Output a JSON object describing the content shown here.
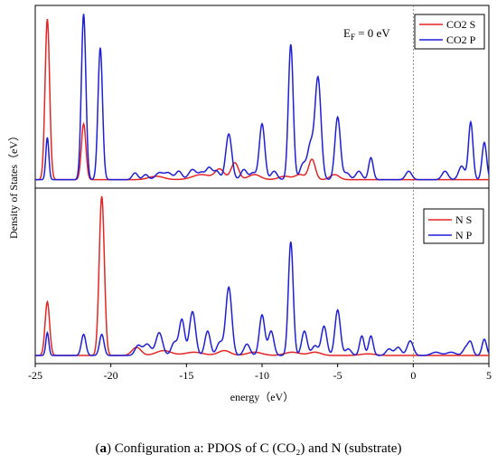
{
  "caption": {
    "letter": "a",
    "text": ") Configuration a: PDOS of C (CO₂) and N (substrate)"
  },
  "chart_data": {
    "type": "line",
    "ylabel": "Density of States（eV）",
    "xlabel": "energy（eV）",
    "xlim": [
      -25,
      5
    ],
    "xticks": [
      "-25",
      "-20",
      "-15",
      "-10",
      "-5",
      "0",
      "5"
    ],
    "fermi_level_x": 0,
    "fermi_annotation": {
      "prefix": "E",
      "subscript": "F",
      "suffix": " = 0 eV"
    },
    "colors": {
      "s": "#e32626",
      "p": "#1f1fd6"
    },
    "panels": [
      {
        "name": "top",
        "baseline": 0.05,
        "ylim": [
          0,
          1.08
        ],
        "series": [
          {
            "name": "CO2 S",
            "color": "#e32626",
            "peaks": [
              {
                "c": -24.2,
                "h": 0.95,
                "w": 0.15
              },
              {
                "c": -21.8,
                "h": 0.33,
                "w": 0.15
              },
              {
                "c": -17.0,
                "h": 0.02,
                "w": 0.5
              },
              {
                "c": -14.0,
                "h": 0.03,
                "w": 0.6
              },
              {
                "c": -12.8,
                "h": 0.06,
                "w": 0.3
              },
              {
                "c": -11.8,
                "h": 0.1,
                "w": 0.25
              },
              {
                "c": -10.5,
                "h": 0.03,
                "w": 0.4
              },
              {
                "c": -8.5,
                "h": 0.02,
                "w": 0.4
              },
              {
                "c": -7.5,
                "h": 0.03,
                "w": 0.3
              },
              {
                "c": -6.7,
                "h": 0.12,
                "w": 0.22
              },
              {
                "c": -5.2,
                "h": 0.03,
                "w": 0.3
              }
            ]
          },
          {
            "name": "CO2 P",
            "color": "#1f1fd6",
            "peaks": [
              {
                "c": -24.2,
                "h": 0.25,
                "w": 0.1
              },
              {
                "c": -21.8,
                "h": 0.98,
                "w": 0.15
              },
              {
                "c": -20.7,
                "h": 0.78,
                "w": 0.15
              },
              {
                "c": -18.4,
                "h": 0.04,
                "w": 0.18
              },
              {
                "c": -17.7,
                "h": 0.03,
                "w": 0.18
              },
              {
                "c": -16.8,
                "h": 0.04,
                "w": 0.25
              },
              {
                "c": -16.2,
                "h": 0.04,
                "w": 0.25
              },
              {
                "c": -15.5,
                "h": 0.05,
                "w": 0.2
              },
              {
                "c": -14.6,
                "h": 0.06,
                "w": 0.25
              },
              {
                "c": -14.0,
                "h": 0.04,
                "w": 0.2
              },
              {
                "c": -13.5,
                "h": 0.07,
                "w": 0.2
              },
              {
                "c": -13.0,
                "h": 0.05,
                "w": 0.2
              },
              {
                "c": -12.2,
                "h": 0.27,
                "w": 0.2
              },
              {
                "c": -11.2,
                "h": 0.06,
                "w": 0.2
              },
              {
                "c": -10.6,
                "h": 0.04,
                "w": 0.2
              },
              {
                "c": -10.0,
                "h": 0.33,
                "w": 0.18
              },
              {
                "c": -9.2,
                "h": 0.05,
                "w": 0.2
              },
              {
                "c": -8.1,
                "h": 0.8,
                "w": 0.16
              },
              {
                "c": -7.3,
                "h": 0.09,
                "w": 0.2
              },
              {
                "c": -6.8,
                "h": 0.2,
                "w": 0.2
              },
              {
                "c": -6.3,
                "h": 0.6,
                "w": 0.2
              },
              {
                "c": -5.0,
                "h": 0.37,
                "w": 0.18
              },
              {
                "c": -4.4,
                "h": 0.04,
                "w": 0.2
              },
              {
                "c": -3.6,
                "h": 0.05,
                "w": 0.2
              },
              {
                "c": -2.8,
                "h": 0.13,
                "w": 0.15
              },
              {
                "c": -0.3,
                "h": 0.05,
                "w": 0.2
              },
              {
                "c": 2.1,
                "h": 0.05,
                "w": 0.2
              },
              {
                "c": 3.2,
                "h": 0.08,
                "w": 0.2
              },
              {
                "c": 3.8,
                "h": 0.34,
                "w": 0.15
              },
              {
                "c": 4.7,
                "h": 0.22,
                "w": 0.15
              }
            ]
          }
        ]
      },
      {
        "name": "bottom",
        "baseline": 0.05,
        "ylim": [
          0,
          1.08
        ],
        "series": [
          {
            "name": "N S",
            "color": "#e32626",
            "peaks": [
              {
                "c": -24.2,
                "h": 0.33,
                "w": 0.15
              },
              {
                "c": -20.6,
                "h": 0.98,
                "w": 0.17
              },
              {
                "c": -18.3,
                "h": 0.05,
                "w": 0.3
              },
              {
                "c": -16.5,
                "h": 0.03,
                "w": 0.5
              },
              {
                "c": -14.5,
                "h": 0.02,
                "w": 0.6
              },
              {
                "c": -12.5,
                "h": 0.03,
                "w": 0.4
              },
              {
                "c": -10.5,
                "h": 0.02,
                "w": 0.5
              },
              {
                "c": -8.0,
                "h": 0.02,
                "w": 0.5
              },
              {
                "c": -6.5,
                "h": 0.02,
                "w": 0.4
              },
              {
                "c": -3.0,
                "h": 0.01,
                "w": 0.5
              }
            ]
          },
          {
            "name": "N P",
            "color": "#1f1fd6",
            "peaks": [
              {
                "c": -24.2,
                "h": 0.14,
                "w": 0.1
              },
              {
                "c": -21.8,
                "h": 0.13,
                "w": 0.15
              },
              {
                "c": -20.6,
                "h": 0.13,
                "w": 0.15
              },
              {
                "c": -18.2,
                "h": 0.06,
                "w": 0.2
              },
              {
                "c": -17.6,
                "h": 0.07,
                "w": 0.25
              },
              {
                "c": -16.8,
                "h": 0.14,
                "w": 0.22
              },
              {
                "c": -15.8,
                "h": 0.08,
                "w": 0.2
              },
              {
                "c": -15.3,
                "h": 0.22,
                "w": 0.18
              },
              {
                "c": -14.6,
                "h": 0.27,
                "w": 0.2
              },
              {
                "c": -13.6,
                "h": 0.15,
                "w": 0.18
              },
              {
                "c": -12.8,
                "h": 0.08,
                "w": 0.2
              },
              {
                "c": -12.2,
                "h": 0.42,
                "w": 0.2
              },
              {
                "c": -11.0,
                "h": 0.07,
                "w": 0.2
              },
              {
                "c": -10.0,
                "h": 0.25,
                "w": 0.18
              },
              {
                "c": -9.4,
                "h": 0.15,
                "w": 0.18
              },
              {
                "c": -8.1,
                "h": 0.7,
                "w": 0.16
              },
              {
                "c": -7.2,
                "h": 0.15,
                "w": 0.18
              },
              {
                "c": -6.5,
                "h": 0.06,
                "w": 0.2
              },
              {
                "c": -5.9,
                "h": 0.18,
                "w": 0.18
              },
              {
                "c": -5.0,
                "h": 0.28,
                "w": 0.18
              },
              {
                "c": -4.3,
                "h": 0.04,
                "w": 0.2
              },
              {
                "c": -3.4,
                "h": 0.12,
                "w": 0.15
              },
              {
                "c": -2.8,
                "h": 0.12,
                "w": 0.15
              },
              {
                "c": -1.6,
                "h": 0.04,
                "w": 0.2
              },
              {
                "c": -1.0,
                "h": 0.05,
                "w": 0.2
              },
              {
                "c": -0.2,
                "h": 0.09,
                "w": 0.2
              },
              {
                "c": 1.5,
                "h": 0.02,
                "w": 0.3
              },
              {
                "c": 2.5,
                "h": 0.02,
                "w": 0.3
              },
              {
                "c": 3.5,
                "h": 0.05,
                "w": 0.2
              },
              {
                "c": 3.8,
                "h": 0.07,
                "w": 0.15
              },
              {
                "c": 4.7,
                "h": 0.1,
                "w": 0.15
              }
            ]
          }
        ]
      }
    ]
  }
}
